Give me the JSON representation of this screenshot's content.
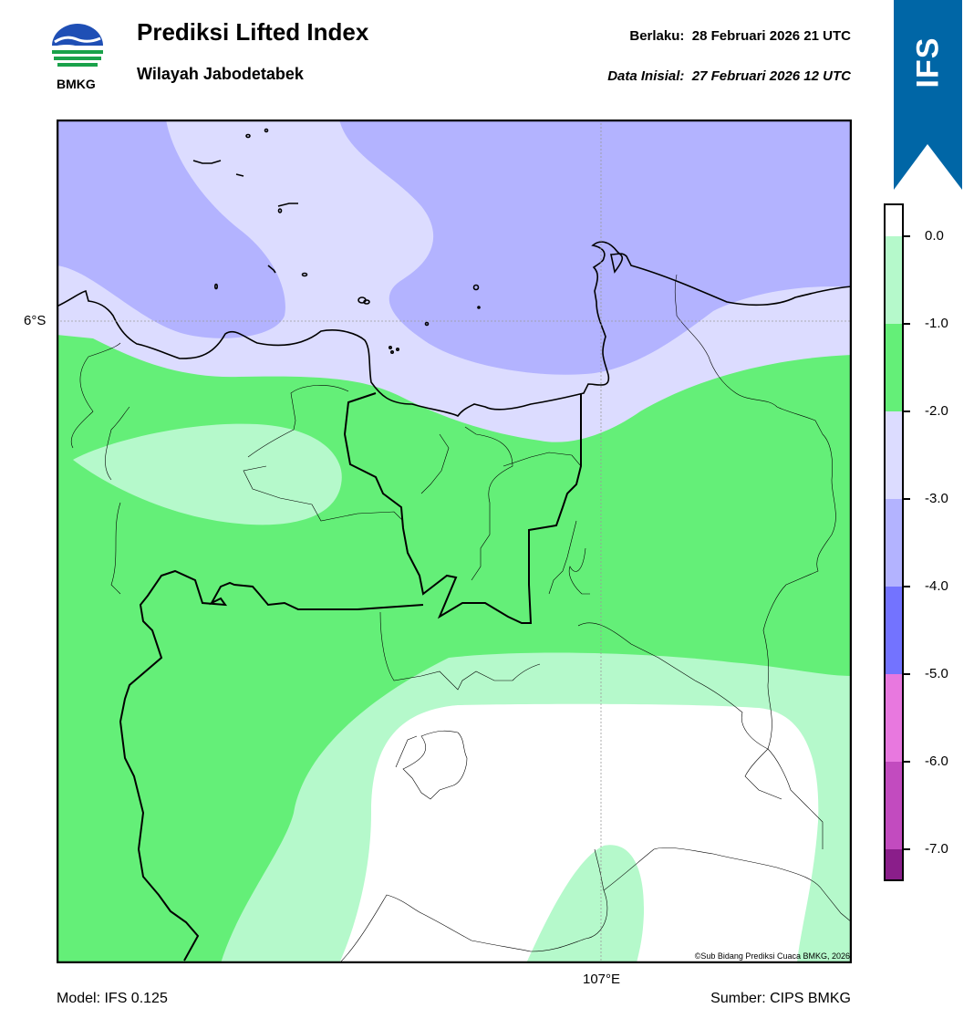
{
  "header": {
    "title": "Prediksi Lifted Index",
    "subtitle": "Wilayah Jabodetabek",
    "valid_label": "Berlaku:",
    "valid_value": "28 Februari 2026 21 UTC",
    "init_label": "Data Inisial:",
    "init_value": "27 Februari 2026 12 UTC"
  },
  "logo": {
    "text": "BMKG",
    "icon": "bmkg-logo-icon"
  },
  "ribbon": {
    "text": "IFS",
    "color": "#0066a6"
  },
  "map": {
    "lat_label": "6°S",
    "lon_label": "107°E",
    "copyright": "©Sub Bidang Prediksi Cuaca BMKG, 2026"
  },
  "colorbar": {
    "labels": [
      "0.0",
      "-1.0",
      "-2.0",
      "-3.0",
      "-4.0",
      "-5.0",
      "-6.0",
      "-7.0"
    ],
    "colors": [
      "#ffffff",
      "#b5f9cb",
      "#64ef78",
      "#dcdcff",
      "#b3b3ff",
      "#7373ff",
      "#e878df",
      "#c24bbf",
      "#8a1e8a"
    ]
  },
  "footer": {
    "model": "Model: IFS 0.125",
    "source": "Sumber: CIPS BMKG"
  }
}
